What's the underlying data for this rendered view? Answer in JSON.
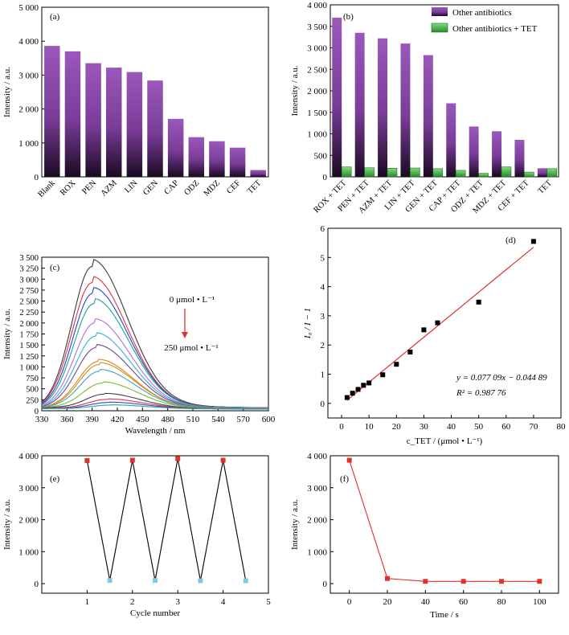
{
  "chart_data": [
    {
      "panel": "(a)",
      "type": "bar",
      "ylabel": "Intensity / a.u.",
      "ylim": [
        0,
        5000
      ],
      "yticks": [
        0,
        1000,
        2000,
        3000,
        4000,
        5000
      ],
      "ytick_labels": [
        "0",
        "1 000",
        "2 000",
        "3 000",
        "4 000",
        "5 000"
      ],
      "categories": [
        "Blank",
        "ROX",
        "PEN",
        "AZM",
        "LIN",
        "GEN",
        "CAP",
        "ODZ",
        "MDZ",
        "CEF",
        "TET"
      ],
      "values": [
        3860,
        3700,
        3350,
        3220,
        3090,
        2840,
        1710,
        1170,
        1050,
        860,
        200
      ],
      "color": "#8a4aa8"
    },
    {
      "panel": "(b)",
      "type": "bar",
      "ylabel": "Intensity / a.u.",
      "ylim": [
        0,
        4000
      ],
      "yticks": [
        0,
        500,
        1000,
        1500,
        2000,
        2500,
        3000,
        3500,
        4000
      ],
      "ytick_labels": [
        "0",
        "500",
        "1 000",
        "1 500",
        "2 000",
        "2 500",
        "3 000",
        "3 500",
        "4 000"
      ],
      "categories": [
        "ROX + TET",
        "PEN + TET",
        "AZM + TET",
        "LIN + TET",
        "GEN + TET",
        "CAP + TET",
        "ODZ + TET",
        "MDZ + TET",
        "CEF + TET",
        "TET"
      ],
      "series": [
        {
          "name": "Other antibiotics",
          "values": [
            3700,
            3350,
            3220,
            3100,
            2830,
            1710,
            1170,
            1060,
            860,
            200
          ],
          "color": "#8a4aa8"
        },
        {
          "name": "Other antibiotics + TET",
          "values": [
            230,
            210,
            200,
            205,
            190,
            150,
            80,
            230,
            110,
            190
          ],
          "color": "#4cb84c"
        }
      ],
      "legend": "top-right"
    },
    {
      "panel": "(c)",
      "type": "line",
      "xlabel": "Wavelength / nm",
      "ylabel": "Intensity / a.u.",
      "xlim": [
        330,
        600
      ],
      "ylim": [
        0,
        3500
      ],
      "xticks": [
        330,
        360,
        390,
        420,
        450,
        480,
        510,
        540,
        570,
        600
      ],
      "yticks": [
        0,
        250,
        500,
        750,
        1000,
        1250,
        1500,
        1750,
        2000,
        2250,
        2500,
        2750,
        3000,
        3250,
        3500
      ],
      "ytick_labels": [
        "0",
        "250",
        "500",
        "750",
        "1 000",
        "1 250",
        "1 500",
        "1 750",
        "2 000",
        "2 250",
        "2 500",
        "2 750",
        "3 000",
        "3 250",
        "3 500"
      ],
      "annotation_top": "0 μmol • L⁻¹",
      "annotation_bottom": "250 μmol • L⁻¹",
      "series": [
        {
          "peak_x": 390,
          "peak_y": 3250,
          "color": "#3a3a3a"
        },
        {
          "peak_x": 390,
          "peak_y": 2880,
          "color": "#e0304a"
        },
        {
          "peak_x": 391,
          "peak_y": 2640,
          "color": "#2046c0"
        },
        {
          "peak_x": 392,
          "peak_y": 2400,
          "color": "#20a098"
        },
        {
          "peak_x": 393,
          "peak_y": 1960,
          "color": "#b070d8"
        },
        {
          "peak_x": 394,
          "peak_y": 1660,
          "color": "#30b0e0"
        },
        {
          "peak_x": 395,
          "peak_y": 1400,
          "color": "#6a4a8a"
        },
        {
          "peak_x": 397,
          "peak_y": 1080,
          "color": "#e08020"
        },
        {
          "peak_x": 398,
          "peak_y": 1010,
          "color": "#d09020"
        },
        {
          "peak_x": 399,
          "peak_y": 860,
          "color": "#40a0d0"
        },
        {
          "peak_x": 402,
          "peak_y": 590,
          "color": "#70c030"
        },
        {
          "peak_x": 405,
          "peak_y": 340,
          "color": "#404040"
        },
        {
          "peak_x": 408,
          "peak_y": 220,
          "color": "#e03050"
        },
        {
          "peak_x": 410,
          "peak_y": 150,
          "color": "#3050c0"
        },
        {
          "peak_x": 412,
          "peak_y": 90,
          "color": "#30a0a0"
        }
      ],
      "baseline": 40
    },
    {
      "panel": "(d)",
      "type": "scatter",
      "ylabel": "I₀ / I − 1",
      "xlabel": "c_TET / (μmol • L⁻¹)",
      "xlim": [
        -5,
        80
      ],
      "ylim": [
        -0.5,
        6
      ],
      "xticks": [
        0,
        10,
        20,
        30,
        40,
        50,
        60,
        70,
        80
      ],
      "yticks": [
        0,
        1,
        2,
        3,
        4,
        5,
        6
      ],
      "x": [
        2,
        4,
        6,
        8,
        10,
        15,
        20,
        25,
        30,
        35,
        50,
        70
      ],
      "y": [
        0.2,
        0.35,
        0.48,
        0.62,
        0.7,
        0.98,
        1.34,
        1.76,
        2.52,
        2.76,
        3.47,
        5.55
      ],
      "fit": {
        "slope": 0.07709,
        "intercept": -0.04489,
        "x_range": [
          2,
          70
        ]
      },
      "equation": "y = 0.077 09x − 0.044 89",
      "r2": "R² = 0.987 76",
      "point_color": "#000000",
      "fit_color": "#e03030"
    },
    {
      "panel": "(e)",
      "type": "line",
      "xlabel": "Cycle number",
      "ylabel": "Intensity / a.u.",
      "xlim": [
        0,
        5
      ],
      "ylim": [
        -300,
        4000
      ],
      "xticks": [
        0,
        1,
        2,
        3,
        4,
        5
      ],
      "yticks": [
        0,
        1000,
        2000,
        3000,
        4000
      ],
      "ytick_labels": [
        "0",
        "1 000",
        "2 000",
        "3 000",
        "4 000"
      ],
      "x": [
        1,
        1.5,
        2,
        2.5,
        3,
        3.5,
        4,
        4.5
      ],
      "y": [
        3850,
        100,
        3860,
        100,
        3910,
        90,
        3860,
        90
      ],
      "high_color": "#e03030",
      "low_color": "#7ec8e8"
    },
    {
      "panel": "(f)",
      "type": "line",
      "xlabel": "Time / s",
      "ylabel": "Intensity / a.u.",
      "xlim": [
        -10,
        110
      ],
      "ylim": [
        -300,
        4000
      ],
      "xticks": [
        0,
        20,
        40,
        60,
        80,
        100
      ],
      "yticks": [
        0,
        1000,
        2000,
        3000,
        4000
      ],
      "ytick_labels": [
        "0",
        "1 000",
        "2 000",
        "3 000",
        "4 000"
      ],
      "x": [
        0,
        20,
        40,
        60,
        80,
        100
      ],
      "y": [
        3860,
        160,
        70,
        70,
        70,
        70
      ],
      "color": "#e03030"
    }
  ]
}
